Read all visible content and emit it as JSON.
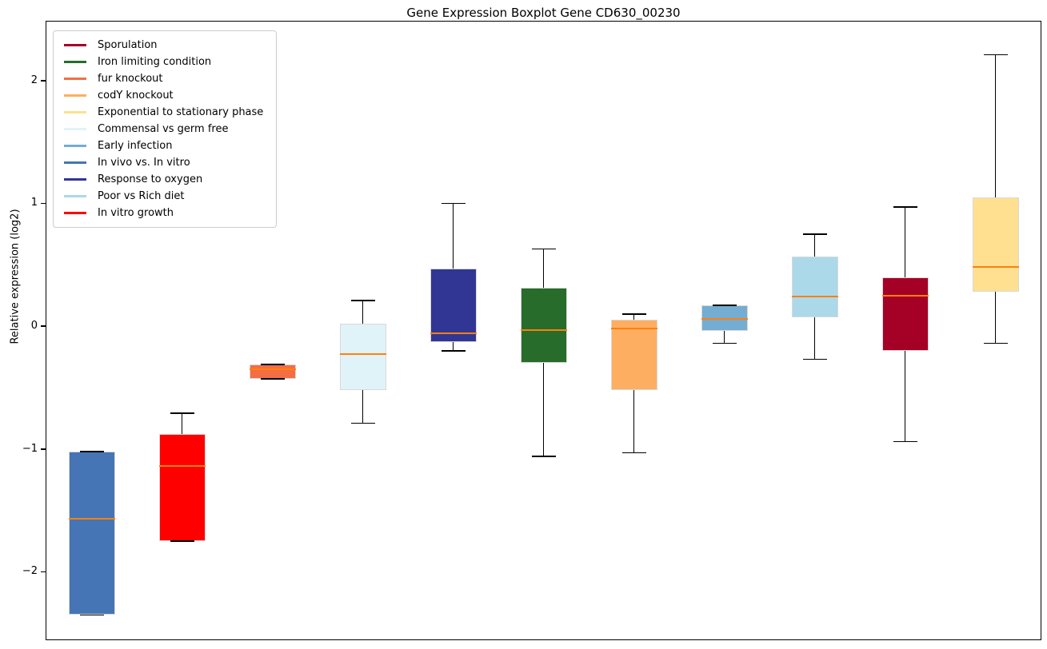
{
  "figure": {
    "title": "Gene Expression Boxplot Gene CD630_00230",
    "ylabel": "Relative expression (log2)"
  },
  "chart_data": {
    "type": "boxplot",
    "title": "Gene Expression Boxplot Gene CD630_00230",
    "xlabel": "",
    "ylabel": "Relative expression (log2)",
    "grid": false,
    "ylim": [
      -2.55,
      2.48
    ],
    "yticks": [
      {
        "value": 2,
        "label": "2"
      },
      {
        "value": 1,
        "label": "1"
      },
      {
        "value": 0,
        "label": "0"
      },
      {
        "value": -1,
        "label": "−1"
      },
      {
        "value": -2,
        "label": "−2"
      }
    ],
    "median_color": "#FF7F0E",
    "whisker_color": "#000000",
    "box_edge_color": "#D9D9D9",
    "legend": {
      "position": "upper-left",
      "entries": [
        {
          "label": "Sporulation",
          "color": "#A50026"
        },
        {
          "label": "Iron limiting condition",
          "color": "#276C2B"
        },
        {
          "label": "fur knockout",
          "color": "#F46D43"
        },
        {
          "label": "codY knockout",
          "color": "#FDAE61"
        },
        {
          "label": "Exponential to stationary phase",
          "color": "#FEE090"
        },
        {
          "label": "Commensal vs germ free",
          "color": "#E0F3F8"
        },
        {
          "label": "Early infection",
          "color": "#74ADD1"
        },
        {
          "label": "In vivo vs. In vitro",
          "color": "#4575B4"
        },
        {
          "label": "Response to oxygen",
          "color": "#313695"
        },
        {
          "label": "Poor vs Rich diet",
          "color": "#ABD9E9"
        },
        {
          "label": "In vitro growth",
          "color": "#FF0000"
        }
      ]
    },
    "boxes": [
      {
        "condition": "In vivo vs. In vitro",
        "color": "#4575B4",
        "whislo": -2.35,
        "q1": -2.35,
        "med": -1.57,
        "q3": -1.02,
        "whishi": -1.02
      },
      {
        "condition": "In vitro growth",
        "color": "#FF0000",
        "whislo": -1.75,
        "q1": -1.75,
        "med": -1.14,
        "q3": -0.88,
        "whishi": -0.71
      },
      {
        "condition": "fur knockout",
        "color": "#F46D43",
        "whislo": -0.43,
        "q1": -0.43,
        "med": -0.35,
        "q3": -0.31,
        "whishi": -0.31
      },
      {
        "condition": "Commensal vs germ free",
        "color": "#E0F3F8",
        "whislo": -0.79,
        "q1": -0.52,
        "med": -0.23,
        "q3": 0.02,
        "whishi": 0.21
      },
      {
        "condition": "Response to oxygen",
        "color": "#313695",
        "whislo": -0.2,
        "q1": -0.13,
        "med": -0.06,
        "q3": 0.47,
        "whishi": 1.0
      },
      {
        "condition": "Iron limiting condition",
        "color": "#276C2B",
        "whislo": -1.06,
        "q1": -0.3,
        "med": -0.03,
        "q3": 0.31,
        "whishi": 0.63
      },
      {
        "condition": "codY knockout",
        "color": "#FDAE61",
        "whislo": -1.03,
        "q1": -0.52,
        "med": -0.02,
        "q3": 0.05,
        "whishi": 0.1
      },
      {
        "condition": "Early infection",
        "color": "#74ADD1",
        "whislo": -0.14,
        "q1": -0.04,
        "med": 0.06,
        "q3": 0.17,
        "whishi": 0.17
      },
      {
        "condition": "Poor vs Rich diet",
        "color": "#ABD9E9",
        "whislo": -0.27,
        "q1": 0.07,
        "med": 0.24,
        "q3": 0.57,
        "whishi": 0.75
      },
      {
        "condition": "Sporulation",
        "color": "#A50026",
        "whislo": -0.94,
        "q1": -0.2,
        "med": 0.25,
        "q3": 0.4,
        "whishi": 0.97
      },
      {
        "condition": "Exponential to stationary phase",
        "color": "#FEE090",
        "whislo": -0.14,
        "q1": 0.28,
        "med": 0.48,
        "q3": 1.05,
        "whishi": 2.21
      }
    ]
  }
}
